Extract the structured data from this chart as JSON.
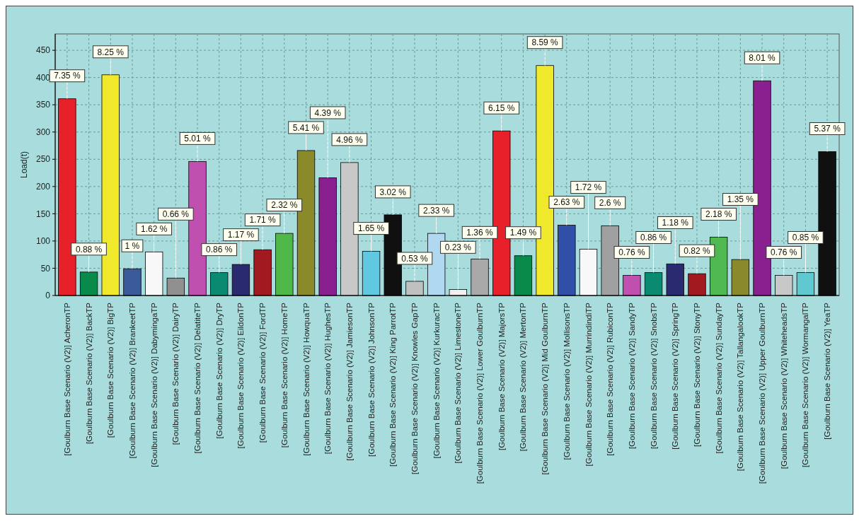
{
  "chart_data": {
    "type": "bar",
    "ylabel": "Load(t)",
    "categories": [
      "[Goulburn Base Scenario (V2)] AcheronTP",
      "[Goulburn Base Scenario (V2)] BackTP",
      "[Goulburn Base Scenario (V2)] BigTP",
      "[Goulburn Base Scenario (V2)] BrankeetTP",
      "[Goulburn Base Scenario (V2)] DabymingaTP",
      "[Goulburn Base Scenario (V2)] DairyTP",
      "[Goulburn Base Scenario (V2)] DelatiteTP",
      "[Goulburn Base Scenario (V2)] DryTP",
      "[Goulburn Base Scenario (V2)] EildonTP",
      "[Goulburn Base Scenario (V2)] FordTP",
      "[Goulburn Base Scenario (V2)] HomeTP",
      "[Goulburn Base Scenario (V2)] HowquaTP",
      "[Goulburn Base Scenario (V2)] HughesTP",
      "[Goulburn Base Scenario (V2)] JamiesonTP",
      "[Goulburn Base Scenario (V2)] JohnsonTP",
      "[Goulburn Base Scenario (V2)] King ParrotTP",
      "[Goulburn Base Scenario (V2)] Knowles GapTP",
      "[Goulburn Base Scenario (V2)] KurkuracTP",
      "[Goulburn Base Scenario (V2)] LimestoneTP",
      "[Goulburn Base Scenario (V2)] Lower GoulburnTP",
      "[Goulburn Base Scenario (V2)] MajorsTP",
      "[Goulburn Base Scenario (V2)] MertonTP",
      "[Goulburn Base Scenario (V2)] Mid GoulburnTP",
      "[Goulburn Base Scenario (V2)] MollisonsTP",
      "[Goulburn Base Scenario (V2)] MurrindindiTP",
      "[Goulburn Base Scenario (V2)] RubiconTP",
      "[Goulburn Base Scenario (V2)] SandyTP",
      "[Goulburn Base Scenario (V2)] SnobsTP",
      "[Goulburn Base Scenario (V2)] SpringTP",
      "[Goulburn Base Scenario (V2)] StonyTP",
      "[Goulburn Base Scenario (V2)] SundayTP",
      "[Goulburn Base Scenario (V2)] TallangalookTP",
      "[Goulburn Base Scenario (V2)] Upper GoulburnTP",
      "[Goulburn Base Scenario (V2)] WhiteheadsTP",
      "[Goulburn Base Scenario (V2)] WormangalTP",
      "[Goulburn Base Scenario (V2)] YeaTP"
    ],
    "values": [
      361,
      43,
      405,
      49,
      80,
      32,
      246,
      42,
      57,
      84,
      114,
      266,
      216,
      244,
      81,
      148,
      26,
      114,
      11,
      67,
      302,
      73,
      422,
      129,
      85,
      128,
      37,
      42,
      58,
      40,
      107,
      66,
      394,
      37,
      42,
      264
    ],
    "colors": [
      "#e8202a",
      "#0a8a4a",
      "#f0e82a",
      "#3a5a9a",
      "#f8f8f8",
      "#909090",
      "#c050b0",
      "#0a8a70",
      "#2a2a70",
      "#a01a20",
      "#50b848",
      "#8a8a2a",
      "#8a2090",
      "#c8c8c8",
      "#60c8e0",
      "#101010",
      "#c0c0c0",
      "#b0d8f0",
      "#f0f0f0",
      "#a8a8a8",
      "#e8202a",
      "#0a8a4a",
      "#f0e82a",
      "#3050a8",
      "#f8f8f8",
      "#a0a0a0",
      "#c050b0",
      "#0a8a70",
      "#2a2a70",
      "#a01a20",
      "#50b850",
      "#8a8a2a",
      "#8a2090",
      "#c8c8c8",
      "#60c8d0",
      "#101010"
    ],
    "ylim": [
      0,
      480
    ],
    "yticks": [
      0,
      50,
      100,
      150,
      200,
      250,
      300,
      350,
      400,
      450
    ],
    "grid": true,
    "annotations": [
      {
        "text": "7.35 %",
        "x": "[Goulburn Base Scenario (V2)] AcheronTP",
        "y": 361
      },
      {
        "text": "0.88 %",
        "x": "[Goulburn Base Scenario (V2)] BackTP",
        "y": 43
      },
      {
        "text": "8.25 %",
        "x": "[Goulburn Base Scenario (V2)] BigTP",
        "y": 405
      },
      {
        "text": "1 %",
        "x": "[Goulburn Base Scenario (V2)] BrankeetTP",
        "y": 49
      },
      {
        "text": "1.62 %",
        "x": "[Goulburn Base Scenario (V2)] DabymingaTP",
        "y": 80
      },
      {
        "text": "0.66 %",
        "x": "[Goulburn Base Scenario (V2)] DairyTP",
        "y": 32
      },
      {
        "text": "5.01 %",
        "x": "[Goulburn Base Scenario (V2)] DelatiteTP",
        "y": 246
      },
      {
        "text": "0.86 %",
        "x": "[Goulburn Base Scenario (V2)] DryTP",
        "y": 42
      },
      {
        "text": "1.17 %",
        "x": "[Goulburn Base Scenario (V2)] EildonTP",
        "y": 57
      },
      {
        "text": "1.71 %",
        "x": "[Goulburn Base Scenario (V2)] FordTP",
        "y": 84
      },
      {
        "text": "2.32 %",
        "x": "[Goulburn Base Scenario (V2)] HomeTP",
        "y": 114
      },
      {
        "text": "5.41 %",
        "x": "[Goulburn Base Scenario (V2)] HowquaTP",
        "y": 266
      },
      {
        "text": "4.39 %",
        "x": "[Goulburn Base Scenario (V2)] HughesTP",
        "y": 216
      },
      {
        "text": "4.96 %",
        "x": "[Goulburn Base Scenario (V2)] JamiesonTP",
        "y": 244
      },
      {
        "text": "1.65 %",
        "x": "[Goulburn Base Scenario (V2)] JohnsonTP",
        "y": 81
      },
      {
        "text": "3.02 %",
        "x": "[Goulburn Base Scenario (V2)] King ParrotTP",
        "y": 148
      },
      {
        "text": "0.53 %",
        "x": "[Goulburn Base Scenario (V2)] Knowles GapTP",
        "y": 26
      },
      {
        "text": "2.33 %",
        "x": "[Goulburn Base Scenario (V2)] KurkuracTP",
        "y": 114
      },
      {
        "text": "0.23 %",
        "x": "[Goulburn Base Scenario (V2)] LimestoneTP",
        "y": 11
      },
      {
        "text": "1.36 %",
        "x": "[Goulburn Base Scenario (V2)] Lower GoulburnTP",
        "y": 67
      },
      {
        "text": "6.15 %",
        "x": "[Goulburn Base Scenario (V2)] MajorsTP",
        "y": 302
      },
      {
        "text": "1.49 %",
        "x": "[Goulburn Base Scenario (V2)] MertonTP",
        "y": 73
      },
      {
        "text": "8.59 %",
        "x": "[Goulburn Base Scenario (V2)] Mid GoulburnTP",
        "y": 422
      },
      {
        "text": "2.63 %",
        "x": "[Goulburn Base Scenario (V2)] MollisonsTP",
        "y": 129
      },
      {
        "text": "1.72 %",
        "x": "[Goulburn Base Scenario (V2)] MurrindindiTP",
        "y": 85
      },
      {
        "text": "2.6 %",
        "x": "[Goulburn Base Scenario (V2)] RubiconTP",
        "y": 128
      },
      {
        "text": "0.76 %",
        "x": "[Goulburn Base Scenario (V2)] SandyTP",
        "y": 37
      },
      {
        "text": "0.86 %",
        "x": "[Goulburn Base Scenario (V2)] SnobsTP",
        "y": 42
      },
      {
        "text": "1.18 %",
        "x": "[Goulburn Base Scenario (V2)] SpringTP",
        "y": 58
      },
      {
        "text": "0.82 %",
        "x": "[Goulburn Base Scenario (V2)] StonyTP",
        "y": 40
      },
      {
        "text": "2.18 %",
        "x": "[Goulburn Base Scenario (V2)] SundayTP",
        "y": 107
      },
      {
        "text": "1.35 %",
        "x": "[Goulburn Base Scenario (V2)] TallangalookTP",
        "y": 66
      },
      {
        "text": "8.01 %",
        "x": "[Goulburn Base Scenario (V2)] Upper GoulburnTP",
        "y": 394
      },
      {
        "text": "0.76 %",
        "x": "[Goulburn Base Scenario (V2)] WhiteheadsTP",
        "y": 37
      },
      {
        "text": "0.85 %",
        "x": "[Goulburn Base Scenario (V2)] WormangalTP",
        "y": 42
      },
      {
        "text": "5.37 %",
        "x": "[Goulburn Base Scenario (V2)] YeaTP",
        "y": 264
      }
    ]
  }
}
